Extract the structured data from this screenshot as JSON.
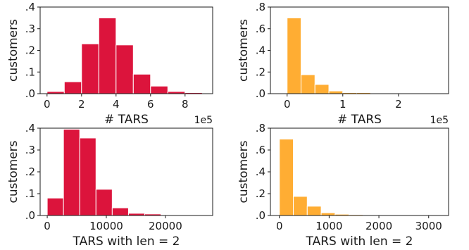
{
  "chart_data": [
    {
      "type": "bar",
      "subtype": "histogram",
      "xlabel": "# TARS",
      "ylabel": "customers",
      "x_offset_label": "1e5",
      "xlim": [
        -0.4,
        9.6
      ],
      "ylim": [
        0,
        0.4
      ],
      "xticks": [
        0,
        2,
        4,
        6,
        8
      ],
      "xtick_labels": [
        "0",
        "2",
        "4",
        "6",
        "8"
      ],
      "yticks": [
        0,
        0.1,
        0.2,
        0.3,
        0.4
      ],
      "ytick_labels": [
        ".0",
        ".1",
        ".2",
        ".3",
        ".4"
      ],
      "color": "#dc143c",
      "bin_edges": [
        0,
        1,
        2,
        3,
        4,
        5,
        6,
        7,
        8,
        9
      ],
      "values": [
        0.01,
        0.055,
        0.23,
        0.35,
        0.225,
        0.09,
        0.035,
        0.01,
        0.005
      ]
    },
    {
      "type": "bar",
      "subtype": "histogram",
      "xlabel": "# TARS",
      "ylabel": "customers",
      "x_offset_label": "1e5",
      "xlim": [
        -0.3,
        2.9
      ],
      "ylim": [
        0,
        0.8
      ],
      "xticks": [
        0,
        1,
        2
      ],
      "xtick_labels": [
        "0",
        "1",
        "2"
      ],
      "yticks": [
        0,
        0.2,
        0.4,
        0.6,
        0.8
      ],
      "ytick_labels": [
        ".0",
        ".2",
        ".4",
        ".6",
        ".8"
      ],
      "color": "#ffad33",
      "bin_edges": [
        0,
        0.25,
        0.5,
        0.75,
        1.0,
        1.25,
        1.5,
        1.75,
        2.0,
        2.25,
        2.5,
        2.75
      ],
      "values": [
        0.7,
        0.175,
        0.085,
        0.025,
        0.01,
        0.01,
        0.003,
        0.002,
        0.001,
        0.001,
        0.001
      ]
    },
    {
      "type": "bar",
      "subtype": "histogram",
      "xlabel": "TARS with len = 2",
      "ylabel": "customers",
      "xlim": [
        -1200,
        28000
      ],
      "ylim": [
        0,
        0.4
      ],
      "xticks": [
        0,
        10000,
        20000
      ],
      "xtick_labels": [
        "0",
        "10000",
        "20000"
      ],
      "yticks": [
        0,
        0.1,
        0.2,
        0.3,
        0.4
      ],
      "ytick_labels": [
        ".0",
        ".1",
        ".2",
        ".3",
        ".4"
      ],
      "color": "#dc143c",
      "bin_edges": [
        0,
        2750,
        5500,
        8250,
        11000,
        13750,
        16500,
        19250,
        22000,
        24750,
        27500
      ],
      "values": [
        0.08,
        0.395,
        0.355,
        0.12,
        0.035,
        0.01,
        0.007,
        0.002,
        0.001,
        0.001
      ]
    },
    {
      "type": "bar",
      "subtype": "histogram",
      "xlabel": "TARS with len = 2",
      "ylabel": "customers",
      "xlim": [
        -180,
        3400
      ],
      "ylim": [
        0,
        0.8
      ],
      "xticks": [
        0,
        1000,
        2000,
        3000
      ],
      "xtick_labels": [
        "0",
        "1000",
        "2000",
        "3000"
      ],
      "yticks": [
        0,
        0.2,
        0.4,
        0.6,
        0.8
      ],
      "ytick_labels": [
        ".0",
        ".2",
        ".4",
        ".6",
        ".8"
      ],
      "color": "#ffad33",
      "bin_edges": [
        0,
        280,
        560,
        840,
        1120,
        1400,
        1680,
        1960,
        2240,
        2520,
        2800,
        3080
      ],
      "values": [
        0.7,
        0.175,
        0.085,
        0.025,
        0.012,
        0.008,
        0.004,
        0.002,
        0.001,
        0.001,
        0.001
      ]
    }
  ]
}
